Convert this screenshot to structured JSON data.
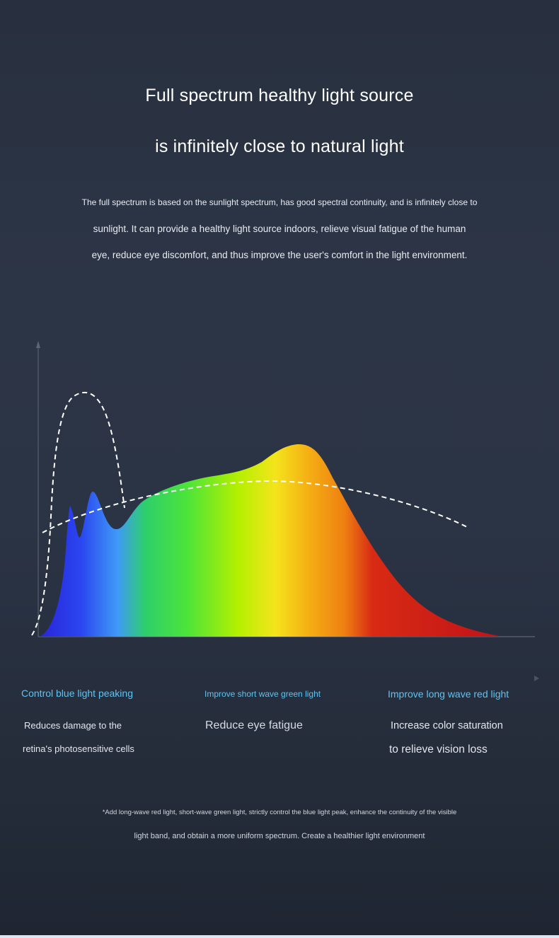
{
  "header": {
    "line1": "Full spectrum healthy light source",
    "line2": "is infinitely close to natural light"
  },
  "intro": {
    "line1": "The full spectrum is based on the sunlight spectrum, has good spectral continuity, and is infinitely close to",
    "line2": "sunlight. It can provide a healthy light source indoors, relieve visual fatigue of the human",
    "line3": "eye, reduce eye discomfort, and thus improve the user's comfort in the light environment."
  },
  "colors": {
    "title_blue": "#5fc3f2",
    "spectrum": [
      "#1e2fe6",
      "#3f9af6",
      "#37d24a",
      "#a8f000",
      "#f7e21a",
      "#f39a10",
      "#d42518",
      "#c01515"
    ]
  },
  "features": [
    {
      "title": "Control blue light peaking",
      "line1": "Reduces damage to the",
      "line2": "retina's photosensitive cells"
    },
    {
      "title": "Improve short wave green light",
      "line1": "Reduce eye fatigue",
      "line2": ""
    },
    {
      "title": "Improve long wave red light",
      "line1": "Increase color saturation",
      "line2": "to relieve vision loss"
    }
  ],
  "footnote": {
    "line1": "*Add long-wave red light, short-wave green light, strictly control the blue light peak, enhance the continuity of the visible",
    "line2": "light band, and obtain a more uniform spectrum. Create a healthier light environment"
  }
}
